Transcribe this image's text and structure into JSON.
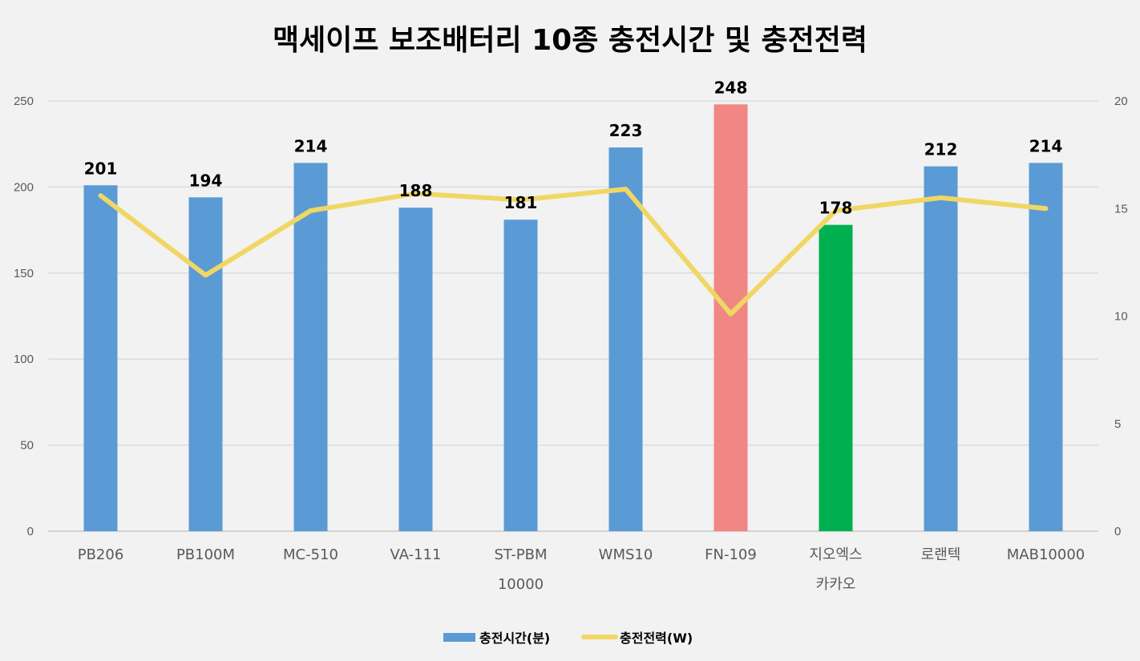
{
  "chart_data": {
    "type": "bar",
    "title": "맥세이프 보조배터리 10종 충전시간 및 충전전력",
    "categories": [
      [
        "PB206"
      ],
      [
        "PB100M"
      ],
      [
        "MC-510"
      ],
      [
        "VA-111"
      ],
      [
        "ST-PBM",
        "10000"
      ],
      [
        "WMS10"
      ],
      [
        "FN-109"
      ],
      [
        "지오엑스",
        "카카오"
      ],
      [
        "로랜텍"
      ],
      [
        "MAB10000"
      ]
    ],
    "series": [
      {
        "name": "충전시간(분)",
        "type": "bar",
        "axis": "left",
        "values": [
          201,
          194,
          214,
          188,
          181,
          223,
          248,
          178,
          212,
          214
        ],
        "colors": [
          "#5b9bd5",
          "#5b9bd5",
          "#5b9bd5",
          "#5b9bd5",
          "#5b9bd5",
          "#5b9bd5",
          "#f08784",
          "#00b050",
          "#5b9bd5",
          "#5b9bd5"
        ]
      },
      {
        "name": "충전전력(W)",
        "type": "line",
        "axis": "right",
        "color": "#f0d764",
        "values": [
          15.6,
          11.9,
          14.9,
          15.7,
          15.4,
          15.9,
          10.1,
          14.9,
          15.5,
          15.0
        ]
      }
    ],
    "left_axis": {
      "min": 0,
      "max": 250,
      "ticks": [
        "0",
        "50",
        "100",
        "150",
        "200",
        "250"
      ]
    },
    "right_axis": {
      "min": 0,
      "max": 20,
      "ticks": [
        "0",
        "5",
        "10",
        "15",
        "20"
      ]
    },
    "grid": true,
    "legend": "bottom",
    "bar_color": "#5b9bd5"
  }
}
